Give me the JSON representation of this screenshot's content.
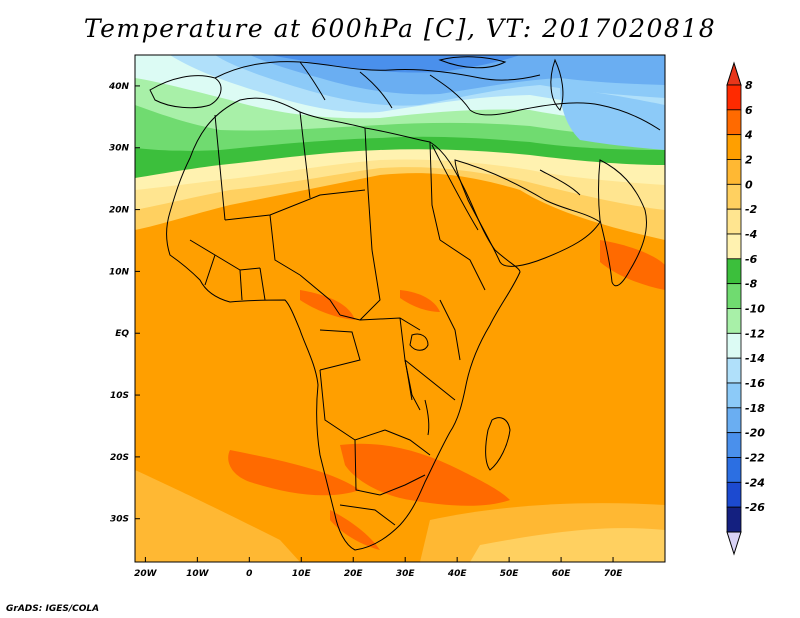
{
  "title": "Temperature at 600hPa [C], VT: 2017020818",
  "credit": "GrADS: IGES/COLA",
  "map": {
    "lon_range": [
      -22,
      80
    ],
    "lat_range": [
      -37,
      45
    ],
    "lat_labels": [
      {
        "value": 40,
        "label": "40N"
      },
      {
        "value": 30,
        "label": "30N"
      },
      {
        "value": 20,
        "label": "20N"
      },
      {
        "value": 10,
        "label": "10N"
      },
      {
        "value": 0,
        "label": "EQ"
      },
      {
        "value": -10,
        "label": "10S"
      },
      {
        "value": -20,
        "label": "20S"
      },
      {
        "value": -30,
        "label": "30S"
      }
    ],
    "lon_labels": [
      {
        "value": -20,
        "label": "20W"
      },
      {
        "value": -10,
        "label": "10W"
      },
      {
        "value": 0,
        "label": "0"
      },
      {
        "value": 10,
        "label": "10E"
      },
      {
        "value": 20,
        "label": "20E"
      },
      {
        "value": 30,
        "label": "30E"
      },
      {
        "value": 40,
        "label": "40E"
      },
      {
        "value": 50,
        "label": "50E"
      },
      {
        "value": 60,
        "label": "60E"
      },
      {
        "value": 70,
        "label": "70E"
      }
    ]
  },
  "colorbar": {
    "levels": [
      {
        "label": "8",
        "color": "#ff2a00"
      },
      {
        "label": "6",
        "color": "#ff6a00"
      },
      {
        "label": "4",
        "color": "#ff9f00"
      },
      {
        "label": "2",
        "color": "#ffb833"
      },
      {
        "label": "0",
        "color": "#ffd060"
      },
      {
        "label": "-2",
        "color": "#ffe590"
      },
      {
        "label": "-4",
        "color": "#fff2b0"
      },
      {
        "label": "-6",
        "color": "#3cbf3c"
      },
      {
        "label": "-8",
        "color": "#70db70"
      },
      {
        "label": "-10",
        "color": "#a8f0a8"
      },
      {
        "label": "-12",
        "color": "#dcfbf4"
      },
      {
        "label": "-14",
        "color": "#b0e0fa"
      },
      {
        "label": "-16",
        "color": "#8ccaf8"
      },
      {
        "label": "-18",
        "color": "#6aaef2"
      },
      {
        "label": "-20",
        "color": "#4a90ec"
      },
      {
        "label": "-22",
        "color": "#2c6fe2"
      },
      {
        "label": "-24",
        "color": "#1c4ad0"
      },
      {
        "label": "-26",
        "color": "#142080"
      }
    ],
    "top_arrow_color": "#e8361a",
    "bottom_arrow_color": "#d8d2f5"
  }
}
